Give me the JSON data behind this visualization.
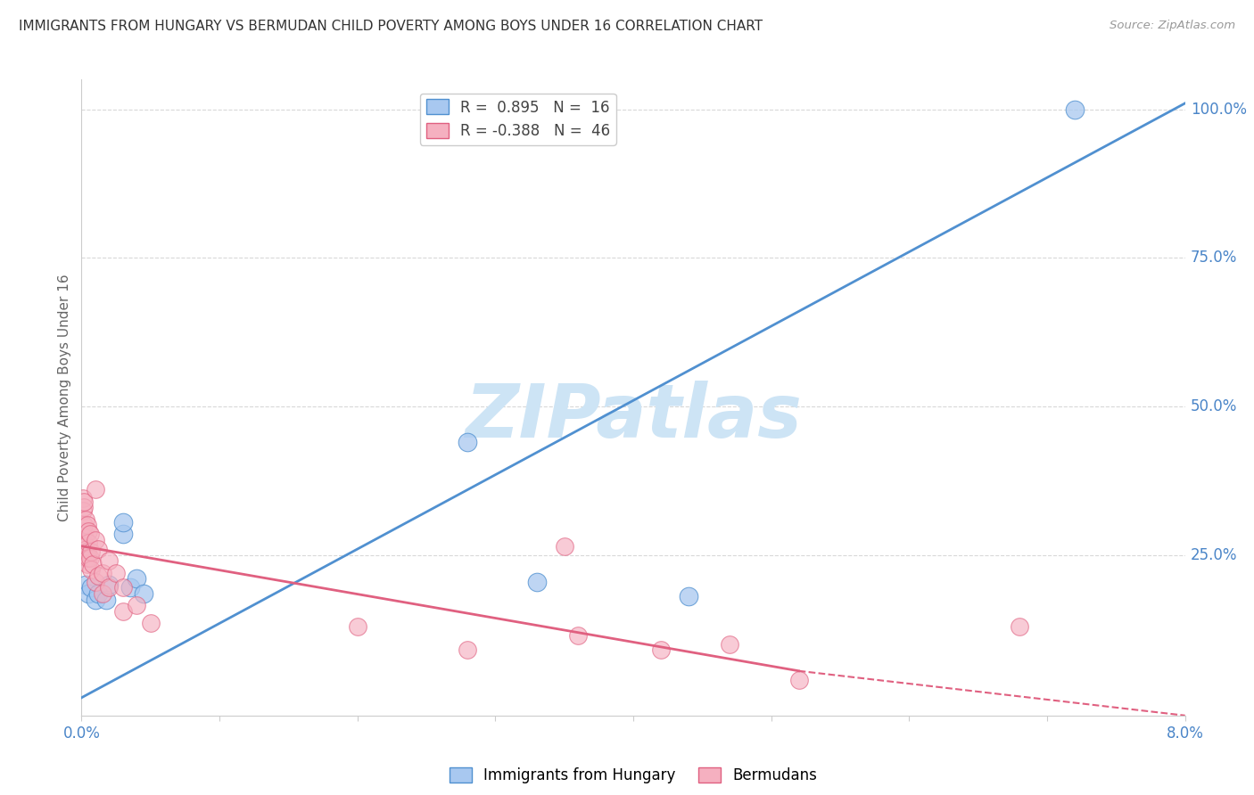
{
  "title": "IMMIGRANTS FROM HUNGARY VS BERMUDAN CHILD POVERTY AMONG BOYS UNDER 16 CORRELATION CHART",
  "source": "Source: ZipAtlas.com",
  "ylabel": "Child Poverty Among Boys Under 16",
  "xmin": 0.0,
  "xmax": 0.08,
  "ymin": -0.02,
  "ymax": 1.05,
  "right_ytick_vals": [
    0.0,
    0.25,
    0.5,
    0.75,
    1.0
  ],
  "right_yticklabels": [
    "",
    "25.0%",
    "50.0%",
    "75.0%",
    "100.0%"
  ],
  "grid_color": "#d8d8d8",
  "background_color": "#ffffff",
  "watermark_text": "ZIPatlas",
  "watermark_color": "#cde4f5",
  "legend_blue_label": "Immigrants from Hungary",
  "legend_pink_label": "Bermudans",
  "legend_r_blue": "R =  0.895",
  "legend_n_blue": "N =  16",
  "legend_r_pink": "R = -0.388",
  "legend_n_pink": "N =  46",
  "blue_color": "#a8c8f0",
  "pink_color": "#f5b0c0",
  "line_blue_color": "#5090d0",
  "line_pink_color": "#e06080",
  "blue_scatter": [
    [
      0.0003,
      0.2
    ],
    [
      0.0005,
      0.185
    ],
    [
      0.0007,
      0.195
    ],
    [
      0.001,
      0.175
    ],
    [
      0.0012,
      0.185
    ],
    [
      0.0018,
      0.175
    ],
    [
      0.002,
      0.2
    ],
    [
      0.003,
      0.285
    ],
    [
      0.003,
      0.305
    ],
    [
      0.0035,
      0.195
    ],
    [
      0.004,
      0.21
    ],
    [
      0.0045,
      0.185
    ],
    [
      0.028,
      0.44
    ],
    [
      0.033,
      0.205
    ],
    [
      0.044,
      0.18
    ],
    [
      0.072,
      1.0
    ]
  ],
  "pink_scatter": [
    [
      0.0001,
      0.345
    ],
    [
      0.0001,
      0.325
    ],
    [
      0.00015,
      0.33
    ],
    [
      0.00015,
      0.29
    ],
    [
      0.0002,
      0.34
    ],
    [
      0.0002,
      0.3
    ],
    [
      0.0002,
      0.27
    ],
    [
      0.00025,
      0.28
    ],
    [
      0.00025,
      0.255
    ],
    [
      0.0003,
      0.31
    ],
    [
      0.0003,
      0.265
    ],
    [
      0.00035,
      0.26
    ],
    [
      0.00035,
      0.245
    ],
    [
      0.0004,
      0.3
    ],
    [
      0.0004,
      0.255
    ],
    [
      0.0004,
      0.235
    ],
    [
      0.0005,
      0.29
    ],
    [
      0.0005,
      0.27
    ],
    [
      0.0005,
      0.245
    ],
    [
      0.0006,
      0.285
    ],
    [
      0.0006,
      0.245
    ],
    [
      0.0007,
      0.255
    ],
    [
      0.0007,
      0.225
    ],
    [
      0.0008,
      0.235
    ],
    [
      0.001,
      0.36
    ],
    [
      0.001,
      0.275
    ],
    [
      0.001,
      0.205
    ],
    [
      0.0012,
      0.26
    ],
    [
      0.0012,
      0.215
    ],
    [
      0.0015,
      0.22
    ],
    [
      0.0015,
      0.185
    ],
    [
      0.002,
      0.24
    ],
    [
      0.002,
      0.195
    ],
    [
      0.0025,
      0.22
    ],
    [
      0.003,
      0.195
    ],
    [
      0.003,
      0.155
    ],
    [
      0.004,
      0.165
    ],
    [
      0.005,
      0.135
    ],
    [
      0.02,
      0.13
    ],
    [
      0.028,
      0.09
    ],
    [
      0.035,
      0.265
    ],
    [
      0.036,
      0.115
    ],
    [
      0.042,
      0.09
    ],
    [
      0.047,
      0.1
    ],
    [
      0.052,
      0.04
    ],
    [
      0.068,
      0.13
    ]
  ],
  "blue_line": [
    0.0,
    0.01,
    0.08,
    1.01
  ],
  "pink_line_solid": [
    0.0,
    0.265,
    0.052,
    0.055
  ],
  "pink_line_dashed": [
    0.052,
    0.055,
    0.08,
    -0.02
  ]
}
